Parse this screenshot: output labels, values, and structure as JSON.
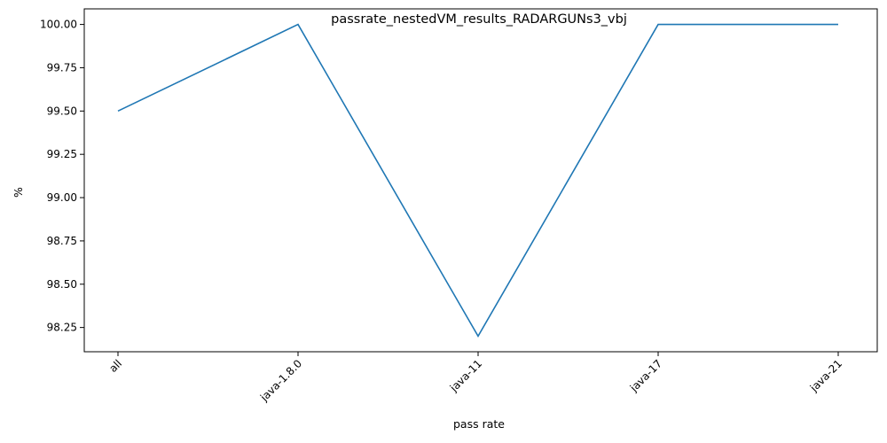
{
  "chart_data": {
    "type": "line",
    "title": "passrate_nestedVM_results_RADARGUNs3_vbj",
    "xlabel": "pass rate",
    "ylabel": "%",
    "categories": [
      "all",
      "java-1.8.0",
      "java-11",
      "java-17",
      "java-21"
    ],
    "series": [
      {
        "values": [
          99.5,
          100.0,
          98.2,
          100.0,
          100.0
        ],
        "color": "#1f77b4"
      }
    ],
    "ylim": [
      98.11,
      100.09
    ],
    "yticks": [
      "98.25",
      "98.50",
      "98.75",
      "99.00",
      "99.25",
      "99.50",
      "99.75",
      "100.00"
    ],
    "grid": false,
    "legend": "none"
  }
}
